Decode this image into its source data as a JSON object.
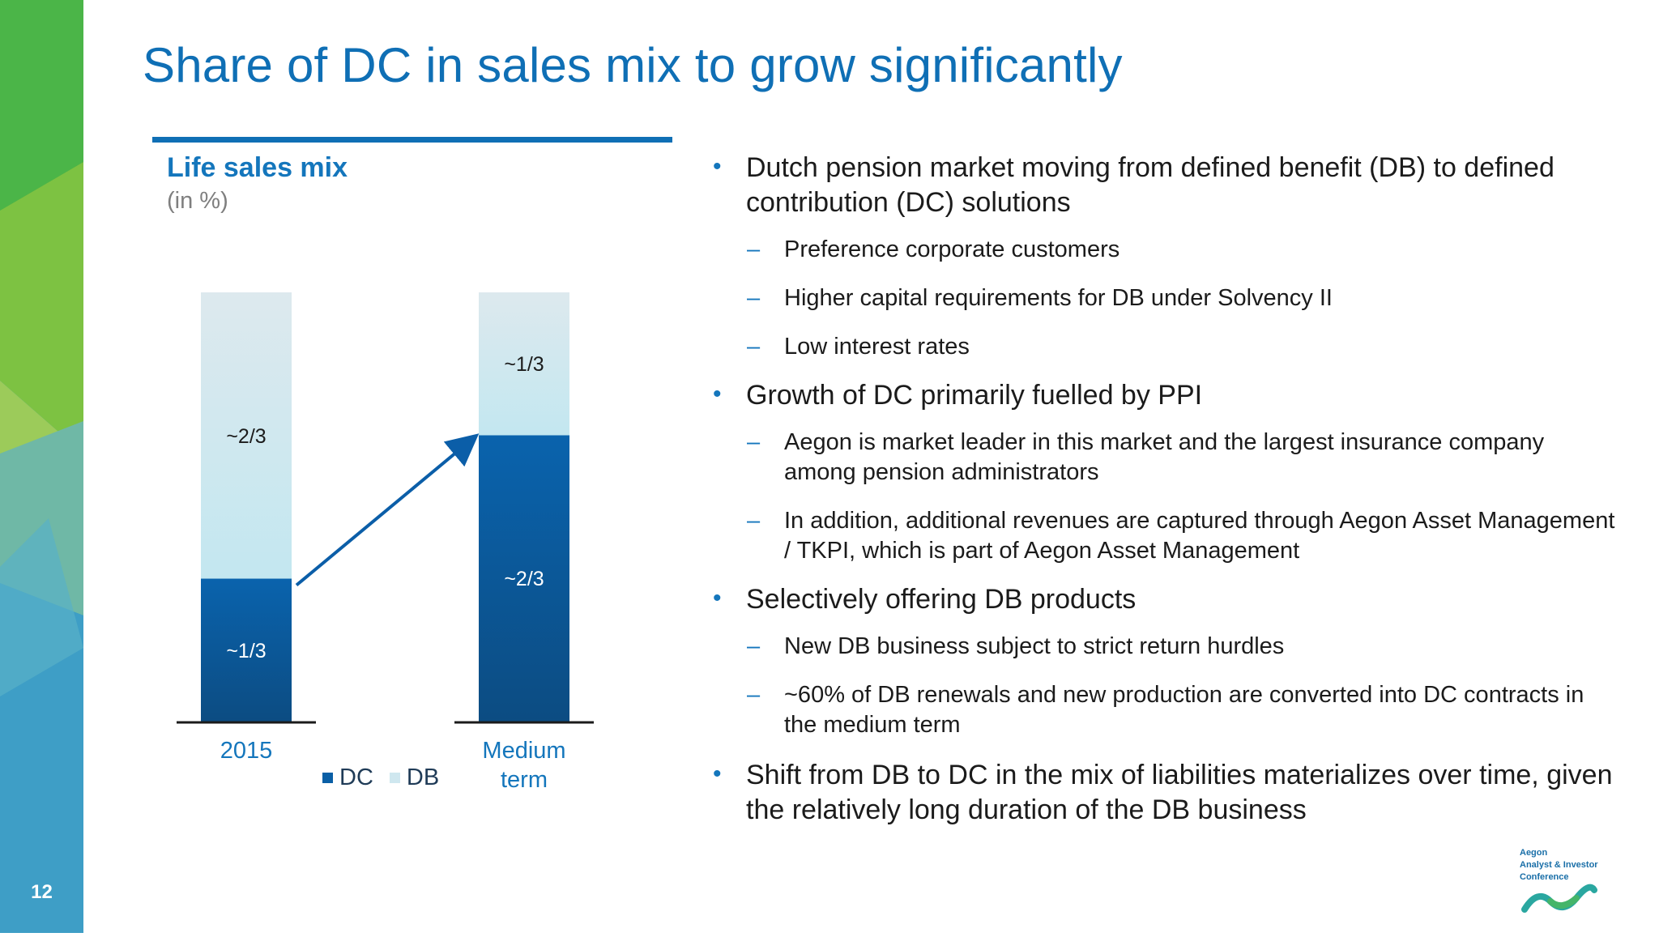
{
  "page": {
    "title": "Share of DC in sales mix to grow significantly",
    "number": "12"
  },
  "colors": {
    "brand_blue": "#0f6fb5",
    "dc_blue": "#0a5fa6",
    "db_light": "#cfe7ef",
    "arrow_blue": "#0b5ea8"
  },
  "chart_data": {
    "type": "bar",
    "stacked": true,
    "title": "Life sales mix",
    "subtitle": "(in %)",
    "categories": [
      "2015",
      "Medium term"
    ],
    "series": [
      {
        "name": "DC",
        "values": [
          33.3,
          66.7
        ],
        "labels": [
          "~1/3",
          "~2/3"
        ],
        "color": "#0a5fa6"
      },
      {
        "name": "DB",
        "values": [
          66.7,
          33.3
        ],
        "labels": [
          "~2/3",
          "~1/3"
        ],
        "color": "#cfe7ef"
      }
    ],
    "ylim": [
      0,
      100
    ],
    "legend": "bottom",
    "annotations": [
      "growth arrow from DC 2015 to DC Medium term"
    ]
  },
  "content": {
    "bullets": [
      {
        "text": "Dutch pension market moving from defined benefit (DB) to defined contribution (DC) solutions",
        "subs": [
          "Preference corporate customers",
          "Higher capital requirements for DB under Solvency II",
          "Low interest rates"
        ]
      },
      {
        "text": "Growth of DC primarily fuelled by PPI",
        "subs": [
          "Aegon is market leader in this market and the largest insurance company among pension administrators",
          "In addition, additional revenues are captured through Aegon Asset Management / TKPI, which is part of Aegon Asset Management"
        ]
      },
      {
        "text": "Selectively offering DB products",
        "subs": [
          "New DB business subject to strict return hurdles",
          "~60% of DB renewals and new production are converted into DC contracts in the medium term"
        ]
      },
      {
        "text": "Shift from DB to DC in the mix of liabilities materializes over time, given the relatively long duration of the DB business",
        "subs": []
      }
    ]
  },
  "logo": {
    "line1": "Aegon",
    "line2": "Analyst & Investor",
    "line3": "Conference"
  }
}
